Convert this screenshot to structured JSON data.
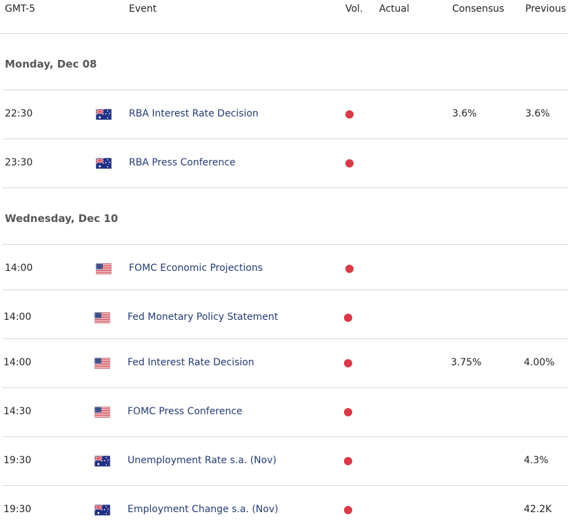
{
  "header": {
    "timezone": "GMT-5",
    "event": "Event",
    "vol": "Vol.",
    "actual": "Actual",
    "consensus": "Consensus",
    "previous": "Previous"
  },
  "days": [
    {
      "label": "Monday, Dec 08",
      "events": [
        {
          "time": "22:30",
          "flag": "au-flag-icon",
          "event": "RBA Interest Rate Decision",
          "volatility": "high",
          "actual": "",
          "consensus": "3.6%",
          "previous": "3.6%"
        },
        {
          "time": "23:30",
          "flag": "au-flag-icon",
          "event": "RBA Press Conference",
          "volatility": "high",
          "actual": "",
          "consensus": "",
          "previous": ""
        }
      ]
    },
    {
      "label": "Wednesday, Dec 10",
      "events": [
        {
          "time": "14:00",
          "flag": "us-flag-icon",
          "event": "FOMC Economic Projections",
          "volatility": "high",
          "actual": "",
          "consensus": "",
          "previous": ""
        },
        {
          "time": "14:00",
          "flag": "us-flag-icon",
          "event": "Fed Monetary Policy Statement",
          "volatility": "high",
          "actual": "",
          "consensus": "",
          "previous": ""
        },
        {
          "time": "14:00",
          "flag": "us-flag-icon",
          "event": "Fed Interest Rate Decision",
          "volatility": "high",
          "actual": "",
          "consensus": "3.75%",
          "previous": "4.00%"
        },
        {
          "time": "14:30",
          "flag": "us-flag-icon",
          "event": "FOMC Press Conference",
          "volatility": "high",
          "actual": "",
          "consensus": "",
          "previous": ""
        },
        {
          "time": "19:30",
          "flag": "au-flag-icon",
          "event": "Unemployment Rate s.a. (Nov)",
          "volatility": "high",
          "actual": "",
          "consensus": "",
          "previous": "4.3%"
        },
        {
          "time": "19:30",
          "flag": "au-flag-icon",
          "event": "Employment Change s.a. (Nov)",
          "volatility": "high",
          "actual": "",
          "consensus": "",
          "previous": "42.2K"
        }
      ]
    }
  ],
  "colors": {
    "high_volatility": "#d83a47",
    "event_text": "#233a73",
    "divider": "#d7d7d7"
  }
}
